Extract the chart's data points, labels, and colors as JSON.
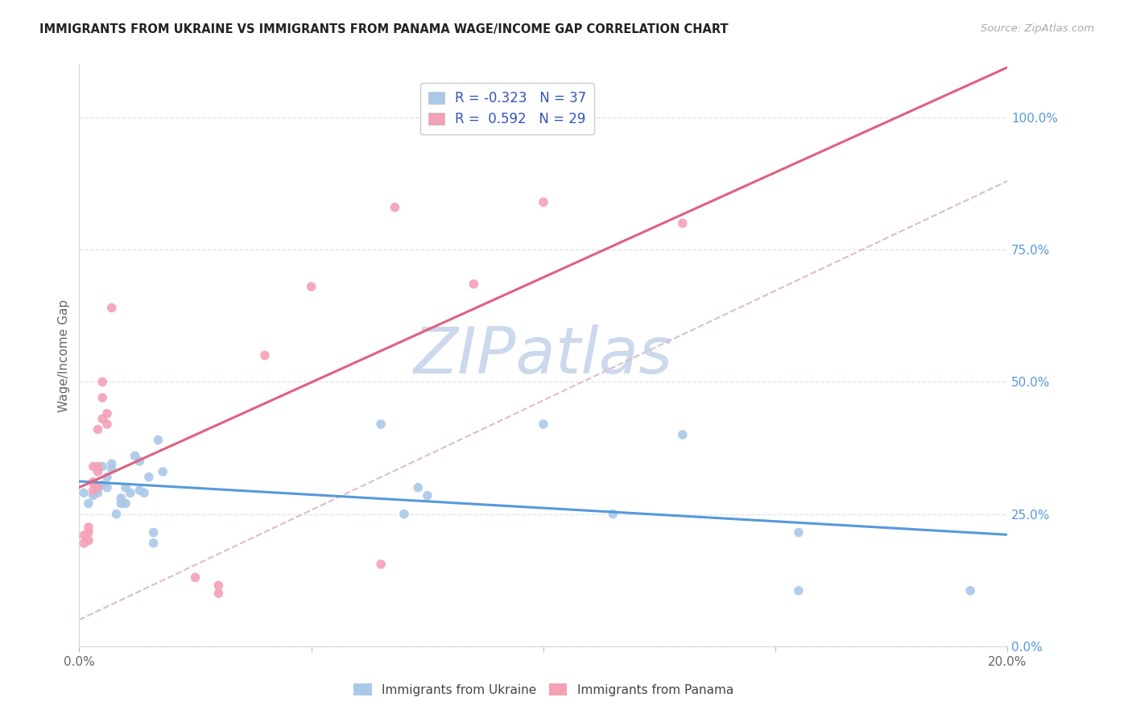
{
  "title": "IMMIGRANTS FROM UKRAINE VS IMMIGRANTS FROM PANAMA WAGE/INCOME GAP CORRELATION CHART",
  "source": "Source: ZipAtlas.com",
  "ylabel": "Wage/Income Gap",
  "ukraine_face_color": "#aac8e8",
  "panama_face_color": "#f4a0b5",
  "ukraine_line_color": "#5599dd",
  "panama_line_color": "#e06080",
  "ref_line_color": "#ddbbcc",
  "grid_color": "#dde4ec",
  "right_tick_color": "#5599dd",
  "title_color": "#222222",
  "source_color": "#aaaaaa",
  "legend_text_color": "#3355bb",
  "bottom_legend_color": "#444444",
  "ukraine_R": -0.323,
  "ukraine_N": 37,
  "panama_R": 0.592,
  "panama_N": 29,
  "ukraine_scatter_x": [
    0.001,
    0.002,
    0.003,
    0.003,
    0.004,
    0.004,
    0.005,
    0.005,
    0.006,
    0.006,
    0.007,
    0.007,
    0.008,
    0.009,
    0.009,
    0.01,
    0.01,
    0.011,
    0.012,
    0.013,
    0.013,
    0.014,
    0.015,
    0.016,
    0.016,
    0.017,
    0.018,
    0.065,
    0.07,
    0.073,
    0.075,
    0.1,
    0.115,
    0.13,
    0.155,
    0.155,
    0.192
  ],
  "ukraine_scatter_y": [
    0.29,
    0.27,
    0.285,
    0.31,
    0.29,
    0.3,
    0.305,
    0.34,
    0.32,
    0.3,
    0.335,
    0.345,
    0.25,
    0.27,
    0.28,
    0.27,
    0.3,
    0.29,
    0.36,
    0.295,
    0.35,
    0.29,
    0.32,
    0.195,
    0.215,
    0.39,
    0.33,
    0.42,
    0.25,
    0.3,
    0.285,
    0.42,
    0.25,
    0.4,
    0.215,
    0.105,
    0.105
  ],
  "panama_scatter_x": [
    0.001,
    0.001,
    0.002,
    0.002,
    0.002,
    0.003,
    0.003,
    0.003,
    0.003,
    0.004,
    0.004,
    0.004,
    0.004,
    0.005,
    0.005,
    0.005,
    0.006,
    0.006,
    0.007,
    0.025,
    0.03,
    0.03,
    0.04,
    0.05,
    0.065,
    0.068,
    0.085,
    0.1,
    0.13
  ],
  "panama_scatter_y": [
    0.195,
    0.21,
    0.2,
    0.215,
    0.225,
    0.295,
    0.31,
    0.34,
    0.31,
    0.3,
    0.33,
    0.34,
    0.41,
    0.43,
    0.47,
    0.5,
    0.42,
    0.44,
    0.64,
    0.13,
    0.1,
    0.115,
    0.55,
    0.68,
    0.155,
    0.83,
    0.685,
    0.84,
    0.8
  ],
  "right_yticks": [
    0.0,
    0.25,
    0.5,
    0.75,
    1.0
  ],
  "right_yticklabels": [
    "0.0%",
    "25.0%",
    "50.0%",
    "75.0%",
    "100.0%"
  ],
  "xlim": [
    0.0,
    0.2
  ],
  "ylim": [
    0.0,
    1.1
  ],
  "ref_line_x": [
    0.0,
    0.2
  ],
  "ref_line_y": [
    0.05,
    0.88
  ],
  "watermark_text": "ZIPatlas",
  "watermark_color": "#ccd8ec",
  "figsize": [
    14.06,
    8.92
  ],
  "dpi": 100,
  "bottom_legend_labels": [
    "Immigrants from Ukraine",
    "Immigrants from Panama"
  ]
}
